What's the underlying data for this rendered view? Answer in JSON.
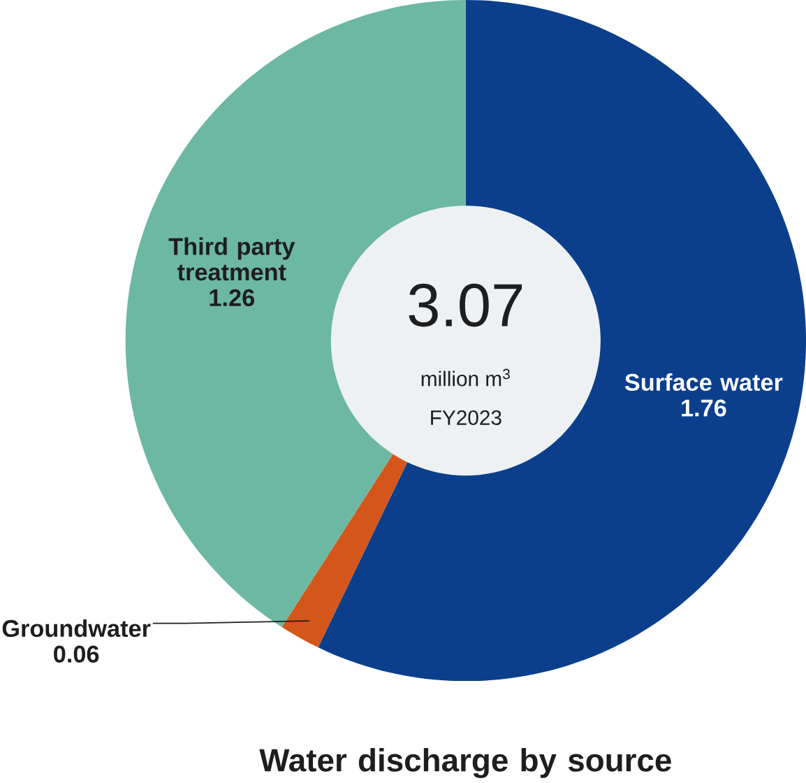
{
  "chart_data": {
    "type": "donut",
    "title": "Water discharge by source",
    "categories": [
      "Surface water",
      "Groundwater",
      "Third party treatment"
    ],
    "values": [
      1.76,
      0.06,
      1.26
    ],
    "colors": [
      "#0b3f8c",
      "#d4561a",
      "#6db8a3"
    ],
    "data_labels": true,
    "annotations": [
      "3.07",
      "million m$^{3}$",
      "FY2023"
    ]
  }
}
